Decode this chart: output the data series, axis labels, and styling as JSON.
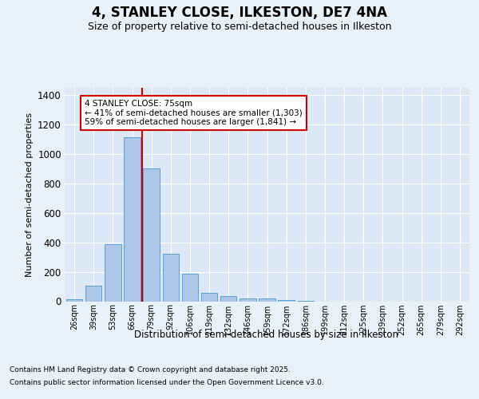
{
  "title": "4, STANLEY CLOSE, ILKESTON, DE7 4NA",
  "subtitle": "Size of property relative to semi-detached houses in Ilkeston",
  "xlabel": "Distribution of semi-detached houses by size in Ilkeston",
  "ylabel": "Number of semi-detached properties",
  "categories": [
    "26sqm",
    "39sqm",
    "53sqm",
    "66sqm",
    "79sqm",
    "92sqm",
    "106sqm",
    "119sqm",
    "132sqm",
    "146sqm",
    "159sqm",
    "172sqm",
    "186sqm",
    "199sqm",
    "212sqm",
    "225sqm",
    "239sqm",
    "252sqm",
    "265sqm",
    "279sqm",
    "292sqm"
  ],
  "values": [
    15,
    105,
    390,
    1115,
    900,
    320,
    185,
    55,
    35,
    20,
    20,
    10,
    5,
    0,
    0,
    0,
    0,
    0,
    0,
    0,
    0
  ],
  "bar_color": "#aec6e8",
  "bar_edge_color": "#5a9fd4",
  "vline_color": "#cc0000",
  "vline_pos": 3.5,
  "annotation_title": "4 STANLEY CLOSE: 75sqm",
  "annotation_line2": "← 41% of semi-detached houses are smaller (1,303)",
  "annotation_line3": "59% of semi-detached houses are larger (1,841) →",
  "annotation_box_color": "#cc0000",
  "ylim": [
    0,
    1450
  ],
  "yticks": [
    0,
    200,
    400,
    600,
    800,
    1000,
    1200,
    1400
  ],
  "bg_color": "#e8f0f8",
  "plot_bg_color": "#dce8f5",
  "footer_line1": "Contains HM Land Registry data © Crown copyright and database right 2025.",
  "footer_line2": "Contains public sector information licensed under the Open Government Licence v3.0."
}
